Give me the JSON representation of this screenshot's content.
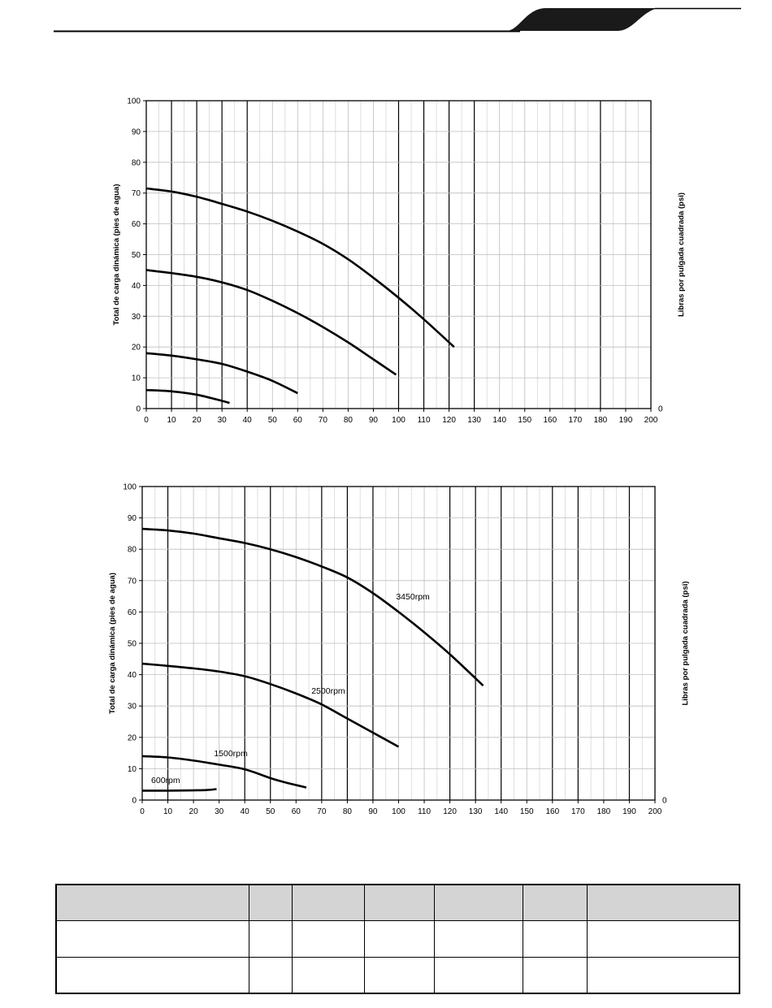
{
  "chart_data": [
    {
      "type": "line",
      "title": "",
      "ylabel": "Total de carga dinámica (pies de agua)",
      "y2label": "Libras por pulgada cuadrada (psi)",
      "xlim": [
        0,
        200
      ],
      "ylim": [
        0,
        100
      ],
      "xticks": [
        0,
        10,
        20,
        30,
        40,
        50,
        60,
        70,
        80,
        90,
        100,
        110,
        120,
        130,
        140,
        150,
        160,
        170,
        180,
        190,
        200
      ],
      "yticks": [
        0,
        10,
        20,
        30,
        40,
        50,
        60,
        70,
        80,
        90,
        100
      ],
      "y2ticks": [
        "0"
      ],
      "heavy_gridlines_x": [
        10,
        20,
        30,
        40,
        100,
        110,
        120,
        130,
        180
      ],
      "grid": true,
      "series": [
        {
          "points": [
            [
              0,
              71.5
            ],
            [
              10,
              70.5
            ],
            [
              20,
              68.8
            ],
            [
              30,
              66.5
            ],
            [
              40,
              64
            ],
            [
              50,
              61
            ],
            [
              60,
              57.5
            ],
            [
              70,
              53.5
            ],
            [
              80,
              48.5
            ],
            [
              90,
              42.5
            ],
            [
              100,
              36
            ],
            [
              110,
              29
            ],
            [
              122,
              20
            ]
          ]
        },
        {
          "points": [
            [
              0,
              45
            ],
            [
              10,
              44
            ],
            [
              20,
              42.8
            ],
            [
              30,
              41
            ],
            [
              40,
              38.5
            ],
            [
              50,
              35
            ],
            [
              60,
              31
            ],
            [
              70,
              26.5
            ],
            [
              80,
              21.5
            ],
            [
              90,
              16
            ],
            [
              99,
              11
            ]
          ]
        },
        {
          "points": [
            [
              0,
              18
            ],
            [
              10,
              17.2
            ],
            [
              20,
              16
            ],
            [
              30,
              14.5
            ],
            [
              40,
              12
            ],
            [
              50,
              9
            ],
            [
              60,
              5
            ]
          ]
        },
        {
          "points": [
            [
              0,
              6
            ],
            [
              10,
              5.6
            ],
            [
              20,
              4.5
            ],
            [
              30,
              2.5
            ],
            [
              33,
              1.8
            ]
          ]
        }
      ]
    },
    {
      "type": "line",
      "title": "",
      "ylabel": "Total de carga dinámica (pies de agua)",
      "y2label": "Libras por pulgada cuadrada (psi)",
      "xlim": [
        0,
        200
      ],
      "ylim": [
        0,
        100
      ],
      "xticks": [
        0,
        10,
        20,
        30,
        40,
        50,
        60,
        70,
        80,
        90,
        100,
        110,
        120,
        130,
        140,
        150,
        160,
        170,
        180,
        190,
        200
      ],
      "yticks": [
        0,
        10,
        20,
        30,
        40,
        50,
        60,
        70,
        80,
        90,
        100
      ],
      "y2ticks": [
        "0"
      ],
      "heavy_gridlines_x": [
        10,
        40,
        50,
        70,
        80,
        90,
        120,
        130,
        140,
        160,
        170,
        190
      ],
      "grid": true,
      "series": [
        {
          "name": "3450rpm",
          "label_at": [
            99,
            64
          ],
          "points": [
            [
              0,
              86.5
            ],
            [
              10,
              86
            ],
            [
              20,
              85
            ],
            [
              30,
              83.5
            ],
            [
              40,
              82
            ],
            [
              50,
              80
            ],
            [
              60,
              77.5
            ],
            [
              70,
              74.5
            ],
            [
              80,
              71
            ],
            [
              90,
              66
            ],
            [
              100,
              60
            ],
            [
              110,
              53.5
            ],
            [
              120,
              46.5
            ],
            [
              133,
              36.5
            ]
          ]
        },
        {
          "name": "2500rpm",
          "label_at": [
            66,
            34
          ],
          "points": [
            [
              0,
              43.5
            ],
            [
              10,
              42.8
            ],
            [
              20,
              42
            ],
            [
              30,
              41
            ],
            [
              40,
              39.5
            ],
            [
              50,
              37
            ],
            [
              60,
              34
            ],
            [
              70,
              30.5
            ],
            [
              80,
              26
            ],
            [
              90,
              21.5
            ],
            [
              100,
              17
            ]
          ]
        },
        {
          "name": "1500rpm",
          "label_at": [
            28,
            14
          ],
          "points": [
            [
              0,
              14
            ],
            [
              10,
              13.6
            ],
            [
              20,
              12.6
            ],
            [
              30,
              11.3
            ],
            [
              40,
              9.8
            ],
            [
              50,
              7
            ],
            [
              55,
              5.8
            ],
            [
              64,
              4
            ]
          ]
        },
        {
          "name": "600rpm",
          "label_at": [
            3.5,
            5.5
          ],
          "points": [
            [
              0,
              3
            ],
            [
              10,
              3
            ],
            [
              20,
              3.1
            ],
            [
              25,
              3.2
            ],
            [
              29,
              3.5
            ]
          ]
        }
      ]
    }
  ],
  "table": {
    "columns": [
      "",
      "",
      "",
      "",
      "",
      "",
      ""
    ],
    "rows": [
      [
        "",
        "",
        "",
        "",
        "",
        "",
        ""
      ],
      [
        "",
        "",
        "",
        "",
        "",
        "",
        ""
      ]
    ]
  }
}
